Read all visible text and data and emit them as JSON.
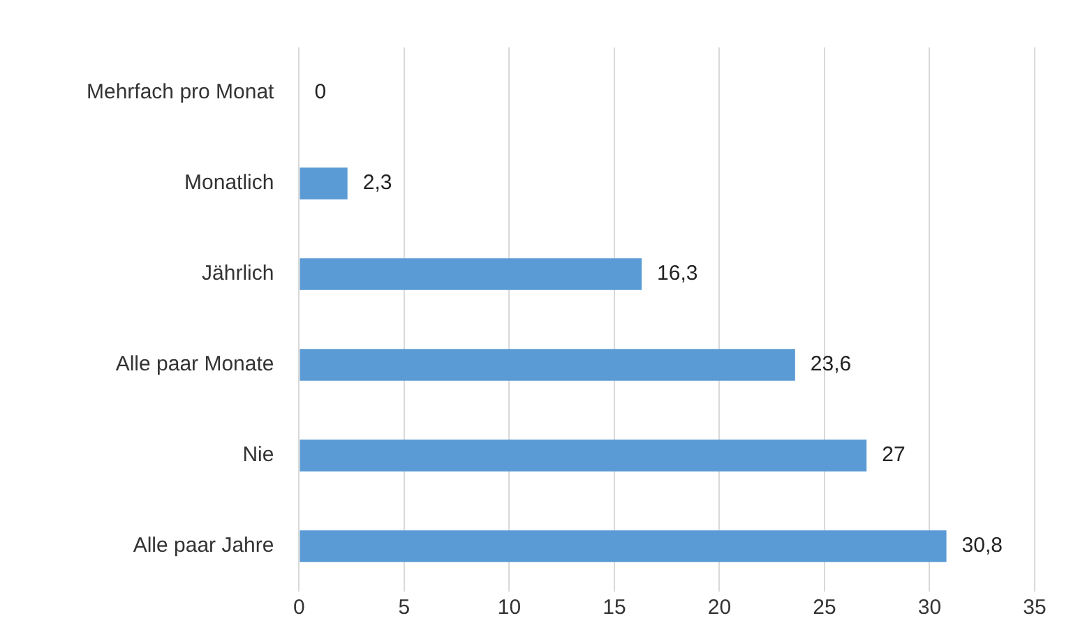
{
  "chart_data": {
    "type": "bar",
    "orientation": "horizontal",
    "categories": [
      "Mehrfach pro Monat",
      "Monatlich",
      "Jährlich",
      "Alle paar Monate",
      "Nie",
      "Alle paar Jahre"
    ],
    "values": [
      0,
      2.3,
      16.3,
      23.6,
      27,
      30.8
    ],
    "value_labels": [
      "0",
      "2,3",
      "16,3",
      "23,6",
      "27",
      "30,8"
    ],
    "color": "#5b9bd5",
    "xlim": [
      0,
      35
    ],
    "xticks": [
      0,
      5,
      10,
      15,
      20,
      25,
      30,
      35
    ],
    "grid": "x",
    "legend": false
  }
}
